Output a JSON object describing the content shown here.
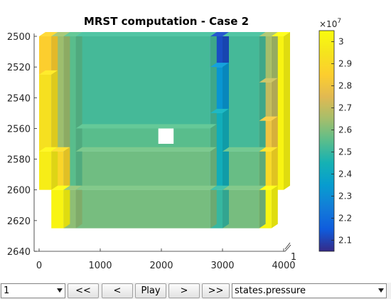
{
  "chart_data": {
    "type": "heatmap",
    "title": "MRST computation - Case 2",
    "xlabel": "",
    "ylabel": "",
    "xlim": [
      0,
      4000
    ],
    "ylim": [
      2500,
      2640
    ],
    "y_reversed": true,
    "x_ticks": [
      "0",
      "1000",
      "2000",
      "3000",
      "4000"
    ],
    "y_ticks": [
      "2500",
      "2520",
      "2540",
      "2560",
      "2580",
      "2600",
      "2620",
      "2640"
    ],
    "z_tick": "1",
    "colorbar": {
      "min": 2.05,
      "max": 3.05,
      "exponent_label": "×10",
      "exponent": "7",
      "ticks": [
        "3",
        "2.9",
        "2.8",
        "2.7",
        "2.6",
        "2.5",
        "2.4",
        "2.3",
        "2.2",
        "2.1"
      ],
      "colormap": "parula"
    },
    "cells": [
      {
        "x0": 0,
        "x1": 200,
        "y0": 2500,
        "y1": 2525,
        "v": 2.85
      },
      {
        "x0": 0,
        "x1": 200,
        "y0": 2525,
        "y1": 2575,
        "v": 2.93
      },
      {
        "x0": 0,
        "x1": 200,
        "y0": 2575,
        "y1": 2600,
        "v": 2.99
      },
      {
        "x0": 200,
        "x1": 400,
        "y0": 2500,
        "y1": 2575,
        "v": 2.64
      },
      {
        "x0": 200,
        "x1": 400,
        "y0": 2575,
        "y1": 2600,
        "v": 2.88
      },
      {
        "x0": 200,
        "x1": 400,
        "y0": 2600,
        "y1": 2625,
        "v": 3.02
      },
      {
        "x0": 400,
        "x1": 600,
        "y0": 2500,
        "y1": 2600,
        "v": 2.55
      },
      {
        "x0": 400,
        "x1": 600,
        "y0": 2600,
        "y1": 2625,
        "v": 2.62
      },
      {
        "x0": 600,
        "x1": 2800,
        "y0": 2500,
        "y1": 2560,
        "v": 2.52
      },
      {
        "x0": 600,
        "x1": 2800,
        "y0": 2560,
        "y1": 2575,
        "v": 2.55
      },
      {
        "x0": 600,
        "x1": 2800,
        "y0": 2575,
        "y1": 2600,
        "v": 2.58
      },
      {
        "x0": 600,
        "x1": 2800,
        "y0": 2600,
        "y1": 2625,
        "v": 2.59
      },
      {
        "x0": 2800,
        "x1": 3000,
        "y0": 2500,
        "y1": 2520,
        "v": 2.12
      },
      {
        "x0": 2800,
        "x1": 3000,
        "y0": 2520,
        "y1": 2550,
        "v": 2.33
      },
      {
        "x0": 2800,
        "x1": 3000,
        "y0": 2550,
        "y1": 2600,
        "v": 2.43
      },
      {
        "x0": 2800,
        "x1": 3000,
        "y0": 2600,
        "y1": 2625,
        "v": 2.5
      },
      {
        "x0": 3000,
        "x1": 3600,
        "y0": 2500,
        "y1": 2575,
        "v": 2.52
      },
      {
        "x0": 3000,
        "x1": 3600,
        "y0": 2575,
        "y1": 2600,
        "v": 2.57
      },
      {
        "x0": 3000,
        "x1": 3600,
        "y0": 2600,
        "y1": 2625,
        "v": 2.59
      },
      {
        "x0": 3600,
        "x1": 3800,
        "y0": 2500,
        "y1": 2530,
        "v": 2.65
      },
      {
        "x0": 3600,
        "x1": 3800,
        "y0": 2530,
        "y1": 2555,
        "v": 2.7
      },
      {
        "x0": 3600,
        "x1": 3800,
        "y0": 2555,
        "y1": 2575,
        "v": 2.8
      },
      {
        "x0": 3600,
        "x1": 3800,
        "y0": 2575,
        "y1": 2600,
        "v": 2.9
      },
      {
        "x0": 3600,
        "x1": 3800,
        "y0": 2600,
        "y1": 2625,
        "v": 3.03
      },
      {
        "x0": 3800,
        "x1": 4000,
        "y0": 2500,
        "y1": 2600,
        "v": 3.02
      }
    ],
    "inactive_cells": [
      {
        "x0": 1950,
        "x1": 2200,
        "y0": 2560,
        "y1": 2570
      }
    ]
  },
  "toolbar": {
    "step_select": "1",
    "first_label": "<<",
    "prev_label": "<",
    "play_label": "Play",
    "next_label": ">",
    "last_label": ">>",
    "field_select": "states.pressure"
  }
}
